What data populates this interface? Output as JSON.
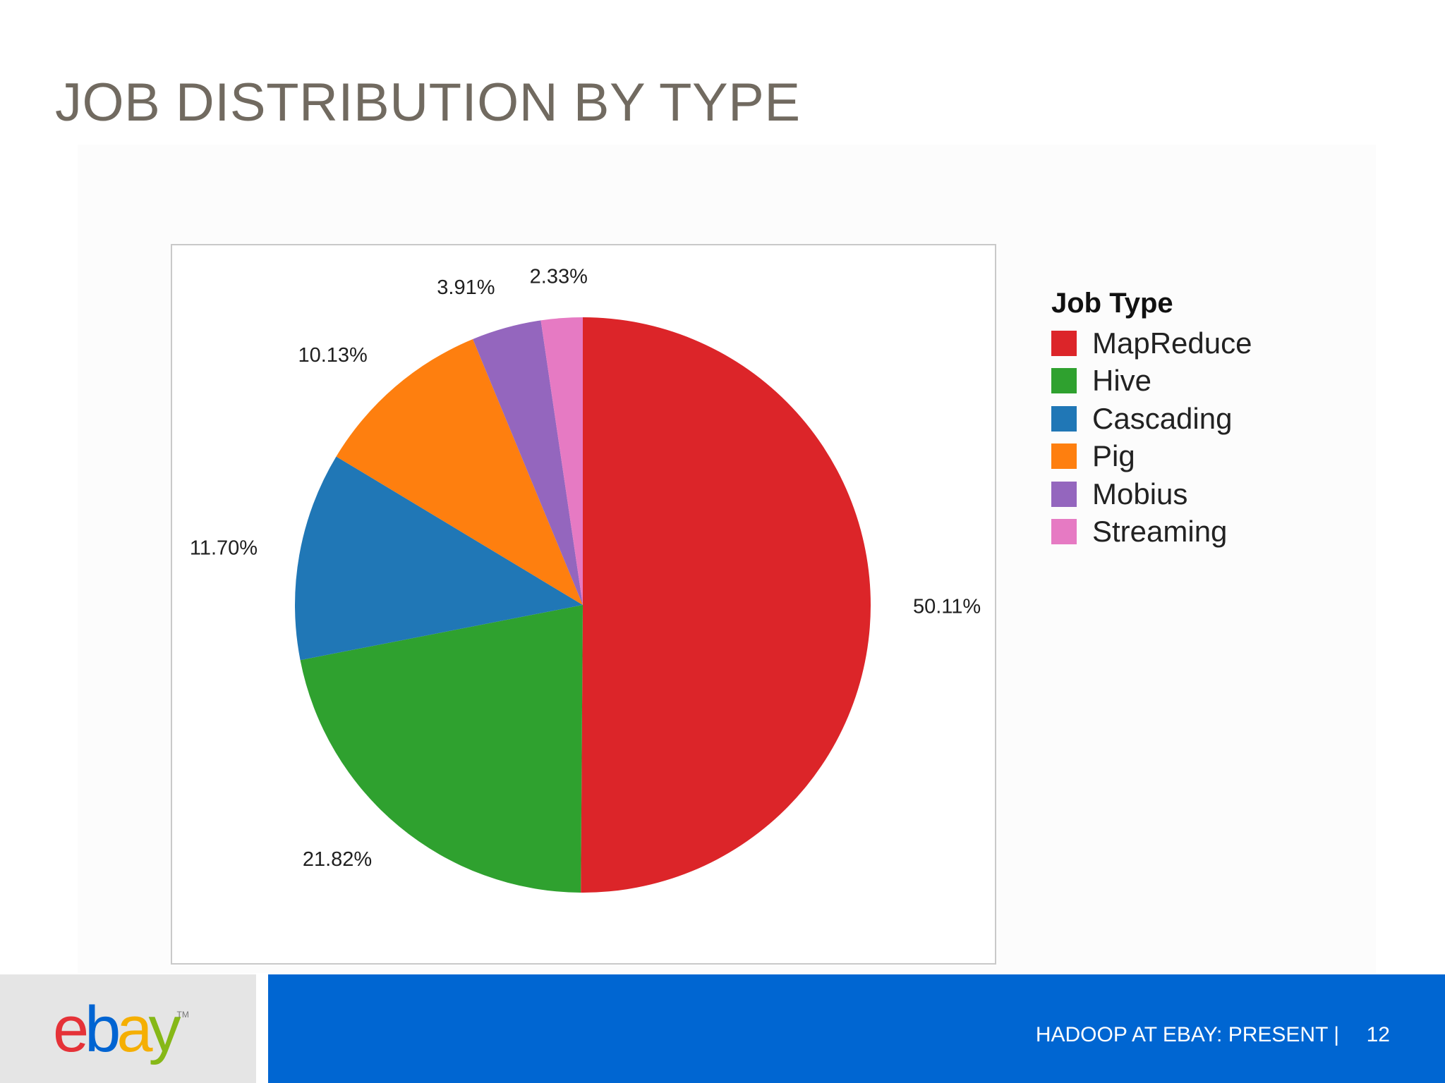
{
  "slide": {
    "title": "JOB DISTRIBUTION BY TYPE",
    "footer_text": "HADOOP AT EBAY: PRESENT  |",
    "page_number": "12",
    "logo": {
      "text": "ebay",
      "letters": [
        {
          "char": "e",
          "color": "#e53238"
        },
        {
          "char": "b",
          "color": "#0064d2"
        },
        {
          "char": "a",
          "color": "#f5af02"
        },
        {
          "char": "y",
          "color": "#86b817"
        }
      ],
      "trademark": "TM"
    },
    "colors": {
      "title": "#716a60",
      "footer_bar": "#0066d2",
      "footer_logo_bg": "#e5e5e5"
    }
  },
  "chart_data": {
    "type": "pie",
    "title": "",
    "legend_title": "Job Type",
    "legend_position": "right",
    "start_angle_deg": 0,
    "direction": "clockwise",
    "series": [
      {
        "name": "MapReduce",
        "value": 50.11,
        "label": "50.11%",
        "color": "#dc2529"
      },
      {
        "name": "Hive",
        "value": 21.82,
        "label": "21.82%",
        "color": "#2fa12f"
      },
      {
        "name": "Cascading",
        "value": 11.7,
        "label": "11.70%",
        "color": "#2077b6"
      },
      {
        "name": "Pig",
        "value": 10.13,
        "label": "10.13%",
        "color": "#fe7f0f"
      },
      {
        "name": "Mobius",
        "value": 3.91,
        "label": "3.91%",
        "color": "#9466be"
      },
      {
        "name": "Streaming",
        "value": 2.33,
        "label": "2.33%",
        "color": "#e67ac3"
      }
    ]
  }
}
